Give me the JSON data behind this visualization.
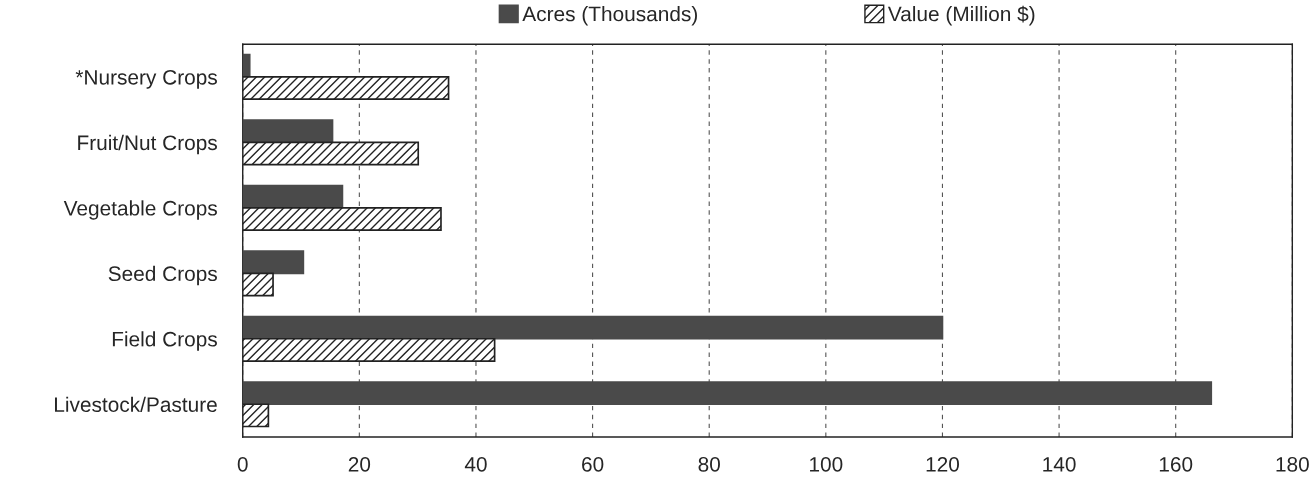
{
  "chart_data": {
    "type": "bar",
    "orientation": "horizontal",
    "categories": [
      "*Nursery Crops",
      "Fruit/Nut Crops",
      "Vegetable Crops",
      "Seed Crops",
      "Field Crops",
      "Livestock/Pasture"
    ],
    "series": [
      {
        "name": "Acres (Thousands)",
        "color": "#4a4a4a",
        "values": [
          1.2,
          15.4,
          17.1,
          10.4,
          120.0,
          166.1
        ]
      },
      {
        "name": "Value (Million $)",
        "color": "#222222",
        "values": [
          35.3,
          30.1,
          34.0,
          5.2,
          43.2,
          4.4
        ]
      }
    ],
    "xlim": [
      0,
      180
    ],
    "xticks": [
      0,
      20,
      40,
      60,
      80,
      100,
      120,
      140,
      160,
      180
    ],
    "grid": "x",
    "legend": "top"
  }
}
